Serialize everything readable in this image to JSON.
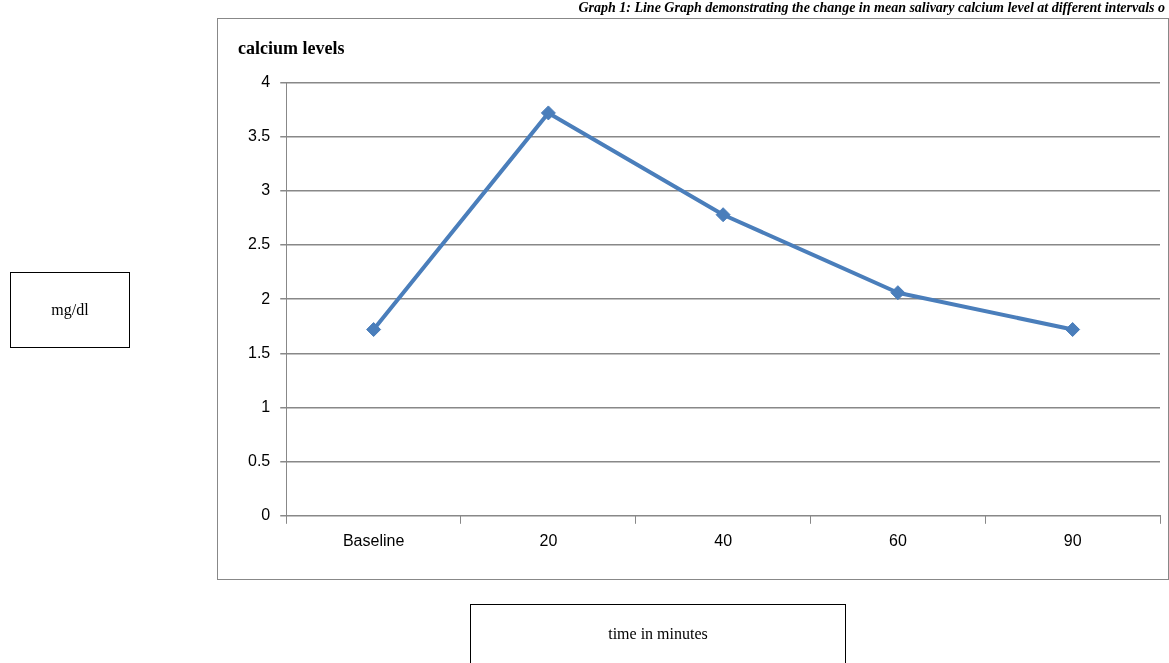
{
  "chart_data": {
    "type": "line",
    "title": "calcium levels",
    "xlabel": "time in minutes",
    "annotations": [
      "Graph 1: Line Graph demonstrating the change in mean salivary calcium level at different intervals o",
      "mg/dl"
    ],
    "categories": [
      "Baseline",
      "20",
      "40",
      "60",
      "90"
    ],
    "series": [
      {
        "color": "#4a7ebb",
        "values": [
          1.72,
          3.72,
          2.78,
          2.06,
          1.72
        ]
      }
    ],
    "ylim": [
      0,
      4
    ],
    "yticks": [
      0,
      0.5,
      1,
      1.5,
      2,
      2.5,
      3,
      3.5,
      4
    ],
    "grid": "y",
    "marker": "diamond",
    "line_style": "solid"
  }
}
